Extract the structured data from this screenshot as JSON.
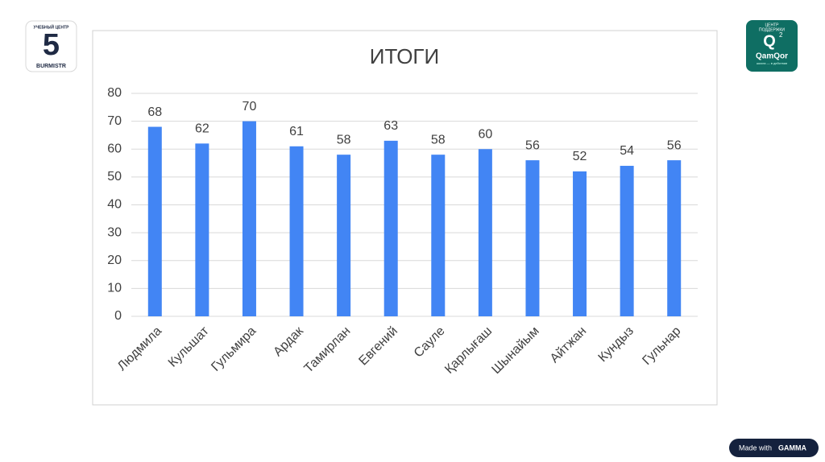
{
  "chart_data": {
    "type": "bar",
    "title": "ИТОГИ",
    "categories": [
      "Людмила",
      "Кульшат",
      "Гульмира",
      "Ардак",
      "Тамирлан",
      "Евгений",
      "Сауле",
      "Қарлығаш",
      "Шынайым",
      "Айтжан",
      "Кундыз",
      "Гульнар"
    ],
    "values": [
      68,
      62,
      70,
      61,
      58,
      63,
      58,
      60,
      56,
      52,
      54,
      56
    ],
    "color": "#4285f4",
    "ylim": [
      0,
      80
    ],
    "yticks": [
      0,
      10,
      20,
      30,
      40,
      50,
      60,
      70,
      80
    ],
    "grid": true
  },
  "logos": {
    "left": {
      "caption": "УЧЕБНЫЙ ЦЕНТР",
      "mark": "5",
      "name": "BURMISTR"
    },
    "right": {
      "caption_1": "ЦЕНТР",
      "caption_2": "ПОДДЕРЖКИ",
      "mark": "Q",
      "superscript": "2",
      "name": "QamQor",
      "tagline": "школа — в действии"
    }
  },
  "badge": {
    "prefix": "Made with",
    "brand": "GAMMA"
  }
}
